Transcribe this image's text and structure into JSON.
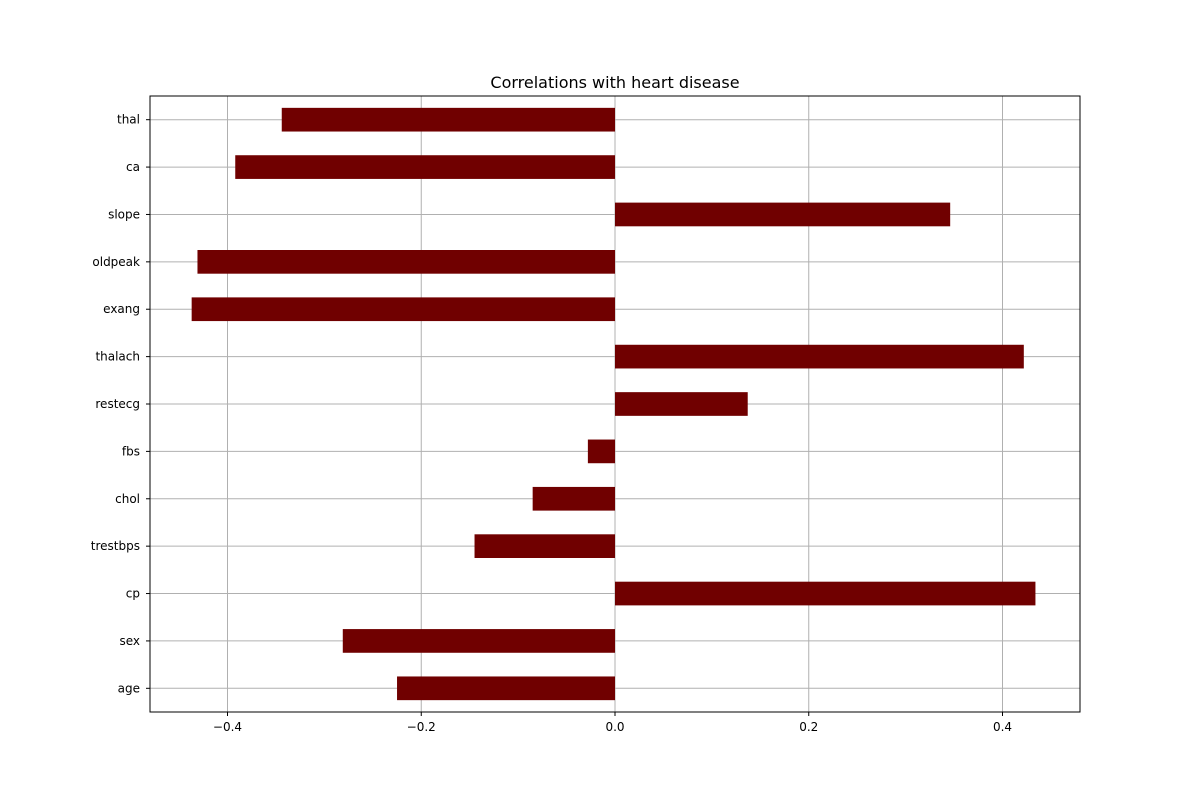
{
  "chart_data": {
    "type": "bar",
    "orientation": "horizontal",
    "title": "Correlations with heart disease",
    "xlabel": "",
    "ylabel": "",
    "xlim": [
      -0.48,
      0.48
    ],
    "grid": true,
    "bar_color": "#700000",
    "categories": [
      "age",
      "sex",
      "cp",
      "trestbps",
      "chol",
      "fbs",
      "restecg",
      "thalach",
      "exang",
      "oldpeak",
      "slope",
      "ca",
      "thal"
    ],
    "values": [
      -0.225,
      -0.281,
      0.434,
      -0.145,
      -0.085,
      -0.028,
      0.137,
      0.422,
      -0.437,
      -0.431,
      0.346,
      -0.392,
      -0.344
    ],
    "xticks": [
      -0.4,
      -0.2,
      0.0,
      0.2,
      0.4
    ],
    "xtick_labels": [
      "−0.4",
      "−0.2",
      "0.0",
      "0.2",
      "0.4"
    ]
  }
}
